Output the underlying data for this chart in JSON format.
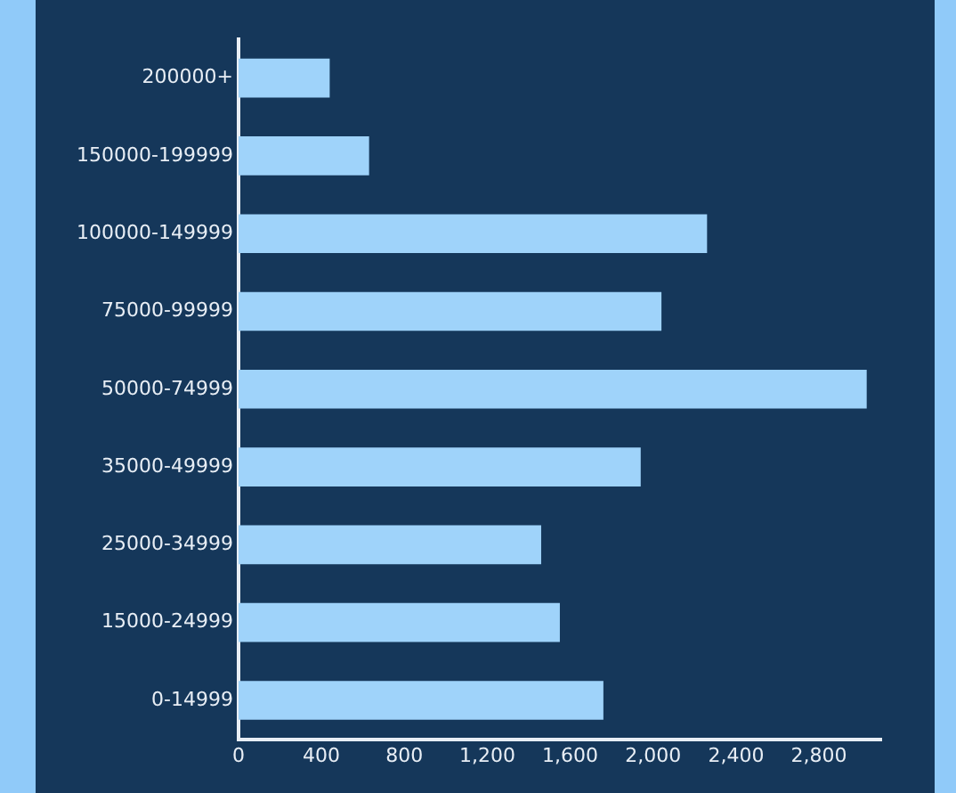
{
  "chart_data": {
    "type": "bar",
    "orientation": "horizontal",
    "categories": [
      "200000+",
      "150000-199999",
      "100000-149999",
      "75000-99999",
      "50000-74999",
      "35000-49999",
      "25000-34999",
      "15000-24999",
      "0-14999"
    ],
    "values": [
      440,
      630,
      2260,
      2040,
      3030,
      1940,
      1460,
      1550,
      1760
    ],
    "color": "#9fd3fa",
    "xlim": [
      0,
      3100
    ],
    "xticks": [
      0,
      {
        "value": 400,
        "label": "400"
      },
      {
        "value": 800,
        "label": "800"
      },
      {
        "value": 1200,
        "label": "1,200"
      },
      {
        "value": 1600,
        "label": "1,600"
      },
      {
        "value": 2000,
        "label": "2,000"
      },
      {
        "value": 2400,
        "label": "2,400"
      },
      {
        "value": 2800,
        "label": "2,800"
      }
    ],
    "grid": false,
    "legend": false
  }
}
